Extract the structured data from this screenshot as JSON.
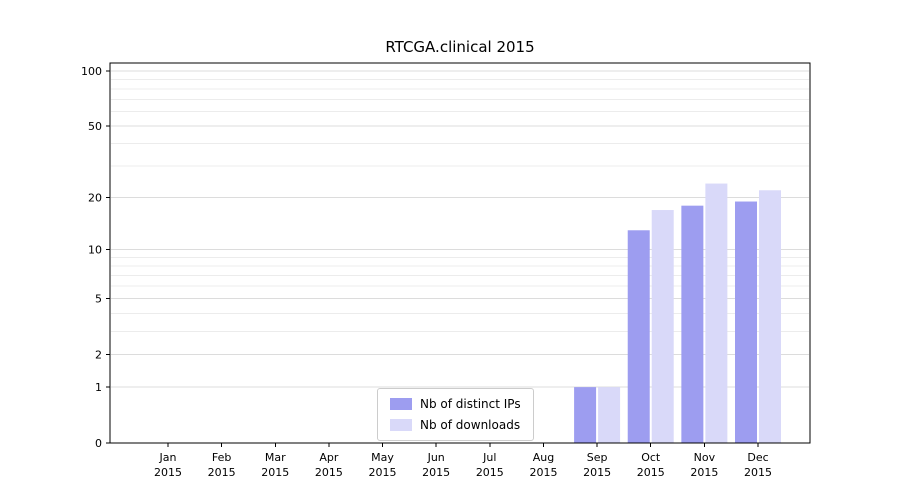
{
  "chart_data": {
    "type": "bar",
    "title": "RTCGA.clinical 2015",
    "categories": [
      "Jan",
      "Feb",
      "Mar",
      "Apr",
      "May",
      "Jun",
      "Jul",
      "Aug",
      "Sep",
      "Oct",
      "Nov",
      "Dec"
    ],
    "year": "2015",
    "series": [
      {
        "name": "Nb of distinct IPs",
        "color": "#9d9df0",
        "values": [
          0,
          0,
          0,
          0,
          0,
          0,
          0,
          0,
          1,
          13,
          18,
          19
        ]
      },
      {
        "name": "Nb of downloads",
        "color": "#d9d9f9",
        "values": [
          0,
          0,
          0,
          0,
          0,
          0,
          0,
          0,
          1,
          17,
          24,
          22
        ]
      }
    ],
    "yscale": "log1p",
    "ylim": [
      0,
      100
    ],
    "ytick_labels": [
      0,
      1,
      2,
      5,
      10,
      20,
      50,
      100
    ],
    "minor_gridlines": [
      3,
      4,
      6,
      7,
      8,
      9,
      30,
      40,
      60,
      70,
      80,
      90
    ],
    "grid": true,
    "legend_position": "bottom-center",
    "axis_color": "#000000",
    "major_grid_color": "#dcdcdc",
    "minor_grid_color": "#ececec"
  }
}
